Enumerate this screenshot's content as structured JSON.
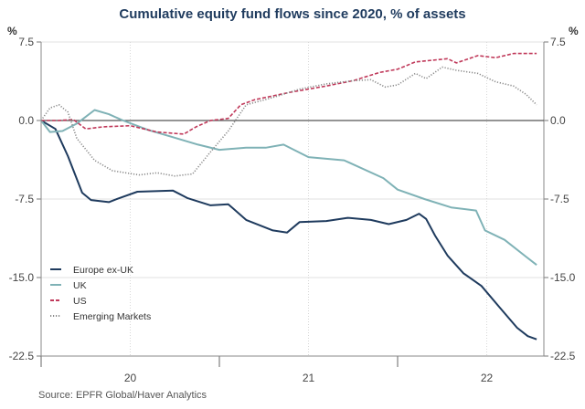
{
  "chart_data": {
    "type": "line",
    "title": "Cumulative equity fund flows since 2020, % of assets",
    "ylabel_left": "%",
    "ylabel_right": "%",
    "ylim": [
      -22.5,
      7.5
    ],
    "yticks": [
      7.5,
      0.0,
      -7.5,
      -15.0,
      -22.5
    ],
    "ytick_labels": [
      "7.5",
      "0.0",
      "-7.5",
      "-15.0",
      "-22.5"
    ],
    "xlim": [
      2020.0,
      2022.82
    ],
    "xtick_labels": [
      {
        "x": 2020.5,
        "label": "20"
      },
      {
        "x": 2021.5,
        "label": "21"
      },
      {
        "x": 2022.5,
        "label": "22"
      }
    ],
    "grid": true,
    "legend_position": "bottom-left",
    "source": "Source:  EPFR Global/Haver Analytics",
    "series": [
      {
        "name": "Europe ex-UK",
        "color": "#1f3b5e",
        "style": "solid",
        "points": [
          [
            2020.0,
            0
          ],
          [
            2020.08,
            -0.8
          ],
          [
            2020.15,
            -3.4
          ],
          [
            2020.23,
            -6.9
          ],
          [
            2020.28,
            -7.6
          ],
          [
            2020.38,
            -7.8
          ],
          [
            2020.44,
            -7.4
          ],
          [
            2020.54,
            -6.8
          ],
          [
            2020.74,
            -6.7
          ],
          [
            2020.82,
            -7.4
          ],
          [
            2020.95,
            -8.1
          ],
          [
            2021.05,
            -8.0
          ],
          [
            2021.15,
            -9.5
          ],
          [
            2021.3,
            -10.5
          ],
          [
            2021.38,
            -10.7
          ],
          [
            2021.45,
            -9.7
          ],
          [
            2021.6,
            -9.6
          ],
          [
            2021.72,
            -9.3
          ],
          [
            2021.85,
            -9.5
          ],
          [
            2021.95,
            -9.9
          ],
          [
            2022.05,
            -9.5
          ],
          [
            2022.12,
            -8.9
          ],
          [
            2022.16,
            -9.4
          ],
          [
            2022.21,
            -11.0
          ],
          [
            2022.28,
            -12.9
          ],
          [
            2022.37,
            -14.6
          ],
          [
            2022.47,
            -15.8
          ],
          [
            2022.57,
            -17.8
          ],
          [
            2022.67,
            -19.8
          ],
          [
            2022.73,
            -20.6
          ],
          [
            2022.78,
            -20.9
          ]
        ]
      },
      {
        "name": "UK",
        "color": "#7fb2b6",
        "style": "solid",
        "points": [
          [
            2020.0,
            0
          ],
          [
            2020.05,
            -1.1
          ],
          [
            2020.12,
            -1.0
          ],
          [
            2020.2,
            -0.3
          ],
          [
            2020.3,
            1.0
          ],
          [
            2020.38,
            0.6
          ],
          [
            2020.46,
            0.0
          ],
          [
            2020.6,
            -0.9
          ],
          [
            2020.74,
            -1.6
          ],
          [
            2020.88,
            -2.3
          ],
          [
            2021.0,
            -2.8
          ],
          [
            2021.15,
            -2.6
          ],
          [
            2021.26,
            -2.6
          ],
          [
            2021.36,
            -2.3
          ],
          [
            2021.5,
            -3.5
          ],
          [
            2021.7,
            -3.8
          ],
          [
            2021.92,
            -5.5
          ],
          [
            2022.0,
            -6.6
          ],
          [
            2022.15,
            -7.5
          ],
          [
            2022.3,
            -8.3
          ],
          [
            2022.44,
            -8.6
          ],
          [
            2022.49,
            -10.5
          ],
          [
            2022.6,
            -11.4
          ],
          [
            2022.72,
            -13.0
          ],
          [
            2022.78,
            -13.8
          ]
        ]
      },
      {
        "name": "US",
        "color": "#c0395a",
        "style": "dashed",
        "points": [
          [
            2020.0,
            0
          ],
          [
            2020.1,
            0
          ],
          [
            2020.18,
            0.1
          ],
          [
            2020.25,
            -0.8
          ],
          [
            2020.35,
            -0.6
          ],
          [
            2020.5,
            -0.5
          ],
          [
            2020.65,
            -1.1
          ],
          [
            2020.8,
            -1.3
          ],
          [
            2020.87,
            -0.6
          ],
          [
            2020.95,
            0.0
          ],
          [
            2021.05,
            0.2
          ],
          [
            2021.12,
            1.5
          ],
          [
            2021.2,
            2.0
          ],
          [
            2021.4,
            2.7
          ],
          [
            2021.6,
            3.3
          ],
          [
            2021.75,
            3.8
          ],
          [
            2021.9,
            4.6
          ],
          [
            2022.0,
            4.9
          ],
          [
            2022.1,
            5.6
          ],
          [
            2022.22,
            5.8
          ],
          [
            2022.28,
            5.9
          ],
          [
            2022.33,
            5.5
          ],
          [
            2022.45,
            6.2
          ],
          [
            2022.55,
            6.0
          ],
          [
            2022.65,
            6.4
          ],
          [
            2022.78,
            6.4
          ]
        ]
      },
      {
        "name": "Emerging Markets",
        "color": "#8a8a8a",
        "style": "dotted",
        "points": [
          [
            2020.0,
            0
          ],
          [
            2020.05,
            1.2
          ],
          [
            2020.1,
            1.5
          ],
          [
            2020.15,
            0.8
          ],
          [
            2020.2,
            -1.7
          ],
          [
            2020.3,
            -3.8
          ],
          [
            2020.4,
            -4.8
          ],
          [
            2020.55,
            -5.2
          ],
          [
            2020.65,
            -5.0
          ],
          [
            2020.75,
            -5.3
          ],
          [
            2020.85,
            -5.1
          ],
          [
            2020.95,
            -3.0
          ],
          [
            2021.05,
            -1.0
          ],
          [
            2021.15,
            1.5
          ],
          [
            2021.3,
            2.2
          ],
          [
            2021.45,
            3.0
          ],
          [
            2021.6,
            3.5
          ],
          [
            2021.75,
            3.8
          ],
          [
            2021.85,
            3.9
          ],
          [
            2021.93,
            3.2
          ],
          [
            2022.0,
            3.4
          ],
          [
            2022.1,
            4.5
          ],
          [
            2022.16,
            4.0
          ],
          [
            2022.25,
            5.1
          ],
          [
            2022.33,
            4.8
          ],
          [
            2022.45,
            4.5
          ],
          [
            2022.55,
            3.7
          ],
          [
            2022.65,
            3.3
          ],
          [
            2022.72,
            2.5
          ],
          [
            2022.78,
            1.5
          ]
        ]
      }
    ]
  }
}
